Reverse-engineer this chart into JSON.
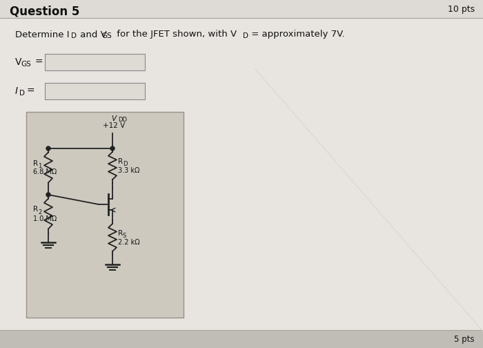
{
  "title": "Question 5",
  "pts_top": "10 pts",
  "pts_bottom": "5 pts",
  "bg_color": "#c8c4bc",
  "header_bg": "#e0ddd8",
  "content_bg": "#d8d4cc",
  "circuit_bg": "#ccc8be",
  "input_box_color": "#dedad4",
  "vdd_label": "V",
  "vdd_sub": "DD",
  "vdd_value": "+12 V",
  "r1_label": "R",
  "r1_sub": "1",
  "r1_value": "6.8 MΩ",
  "rd_label": "R",
  "rd_sub": "D",
  "rd_value": "3.3 kΩ",
  "r2_label": "R",
  "r2_sub": "2",
  "r2_value": "1.0 MΩ",
  "rs_label": "R",
  "rs_sub": "S",
  "rs_value": "2.2 kΩ",
  "line_color": "#222222",
  "text_color": "#111111"
}
